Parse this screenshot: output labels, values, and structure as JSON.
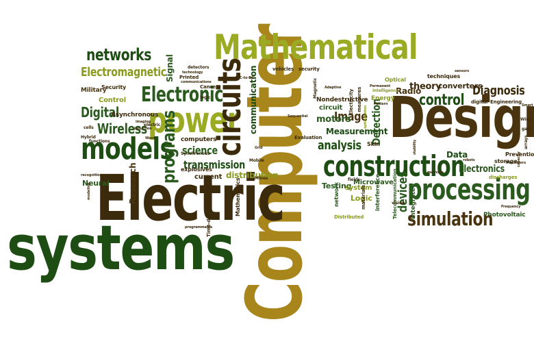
{
  "colors": {
    "dark_green": "#1e4d14",
    "forest_green": "#2b5a1e",
    "olive": "#8a9a1c",
    "light_olive": "#9aaa22",
    "brown": "#4a3410",
    "dark_brown": "#3b2a0c",
    "gold": "#a8861c"
  },
  "words": {
    "design": "Design",
    "computer": "Computer",
    "electric": "Electric",
    "systems": "systems",
    "mathematical": "Mathematical",
    "construction": "construction",
    "processing": "processing",
    "simulation": "simulation",
    "power": "power",
    "models": "models",
    "circuits": "circuits",
    "electronic": "Electronic",
    "networks": "networks",
    "electromagnetic": "Electromagnetic",
    "digital": "Digital",
    "wireless": "Wireless",
    "control_left": "Control",
    "control_right": "control",
    "programs": "programs",
    "science": "science",
    "transmission": "transmission",
    "distribution": "distribution",
    "analysis": "analysis",
    "image": "Image",
    "measurement": "Measurement",
    "detection": "Detection",
    "motors": "motors",
    "devices": "devices",
    "electronics": "Electronics",
    "diagnosis": "Diagnosis",
    "theory": "theory",
    "converters": "converters",
    "radio": "Radio",
    "data": "Data",
    "signal": "Signal",
    "neural": "Neural",
    "military": "Military",
    "security": "Security",
    "asynchronous": "Asynchronous",
    "computers": "computers",
    "current": "current",
    "explosives": "explosives",
    "research": "Research",
    "testing": "Testing",
    "logic": "Logic",
    "microwave": "Microwave",
    "system": "system",
    "photovoltaic": "Photovoltaic",
    "communication": "communication",
    "circuit": "circuit",
    "nondestructive": "Nondestructive",
    "techniques": "techniques",
    "prevention": "Prevention",
    "storage": "storage",
    "discharges": "discharges",
    "mathematics": "Mathematics",
    "integrated": "Integrated",
    "telecommunication": "Telecommunication",
    "distributed": "Distributed",
    "network": "network",
    "interference": "interference",
    "materials": "materials",
    "energy": "Energy",
    "optical": "Optical",
    "digital_small": "digital",
    "engineering": "Engineering",
    "skin": "Skin",
    "measures": "measures",
    "evaluation": "Evaluation",
    "vehicles": "vehicles",
    "security_top": "security",
    "detectors": "detectors",
    "printed": "Printed",
    "cancer": "Cancer",
    "electric_small": "electric",
    "cells": "cells",
    "hybrid": "Hybrid",
    "functions": "functions",
    "synchronous": "Synchronous",
    "mobile": "Mobile",
    "fields": "fields",
    "vision": "vision",
    "arrays": "arrays",
    "gate": "gate",
    "wind": "Wind",
    "frequency": "Frequency",
    "time_domain": "Time-domain",
    "programmable": "programmable",
    "recognition": "recognition",
    "modeling": "modeling",
    "dc_to_dc": "DC-to-DC",
    "sequential": "Sequential",
    "adaptive": "Adaptive",
    "magnetic": "Magnetic",
    "electricity": "Electricity",
    "pattern": "Pattern",
    "intelligence": "intelligence",
    "optimization": "optimization",
    "stability": "stability",
    "methods": "methods",
    "robots": "robots",
    "capacity": "capacity",
    "communications": "communications",
    "technology": "technology",
    "logic_small": "logic",
    "mines": "Mines",
    "grid": "Grid",
    "imaging": "imaging",
    "induction": "Induction",
    "wave": "Wave",
    "permanent": "Permanent",
    "sensors": "sensors",
    "transistors": "Transistors",
    "smart": "Smart"
  }
}
